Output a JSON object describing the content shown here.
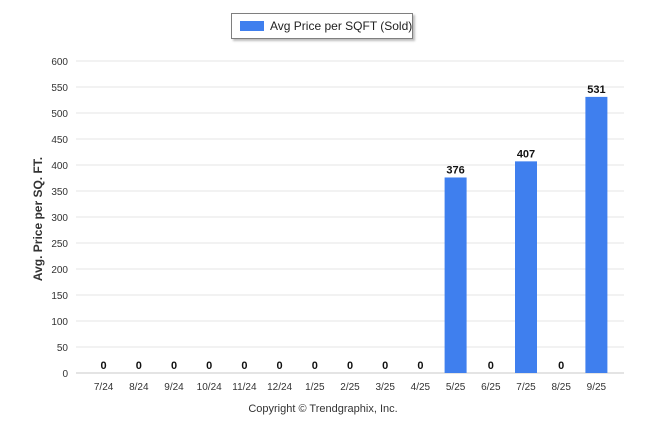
{
  "chart_data": {
    "type": "bar",
    "categories": [
      "7/24",
      "8/24",
      "9/24",
      "10/24",
      "11/24",
      "12/24",
      "1/25",
      "2/25",
      "3/25",
      "4/25",
      "5/25",
      "6/25",
      "7/25",
      "8/25",
      "9/25"
    ],
    "series": [
      {
        "name": "Avg Price per SQFT (Sold)",
        "values": [
          0,
          0,
          0,
          0,
          0,
          0,
          0,
          0,
          0,
          0,
          376,
          0,
          407,
          0,
          531
        ]
      }
    ],
    "ylabel": "Avg. Price per SQ. FT.",
    "xlabel": "",
    "ylim": [
      0,
      600
    ],
    "yticks": [
      0,
      50,
      100,
      150,
      200,
      250,
      300,
      350,
      400,
      450,
      500,
      550,
      600
    ],
    "legend_position": "top-center",
    "grid": true,
    "bar_color": "#3f7fee",
    "footer": "Copyright © Trendgraphix, Inc."
  }
}
